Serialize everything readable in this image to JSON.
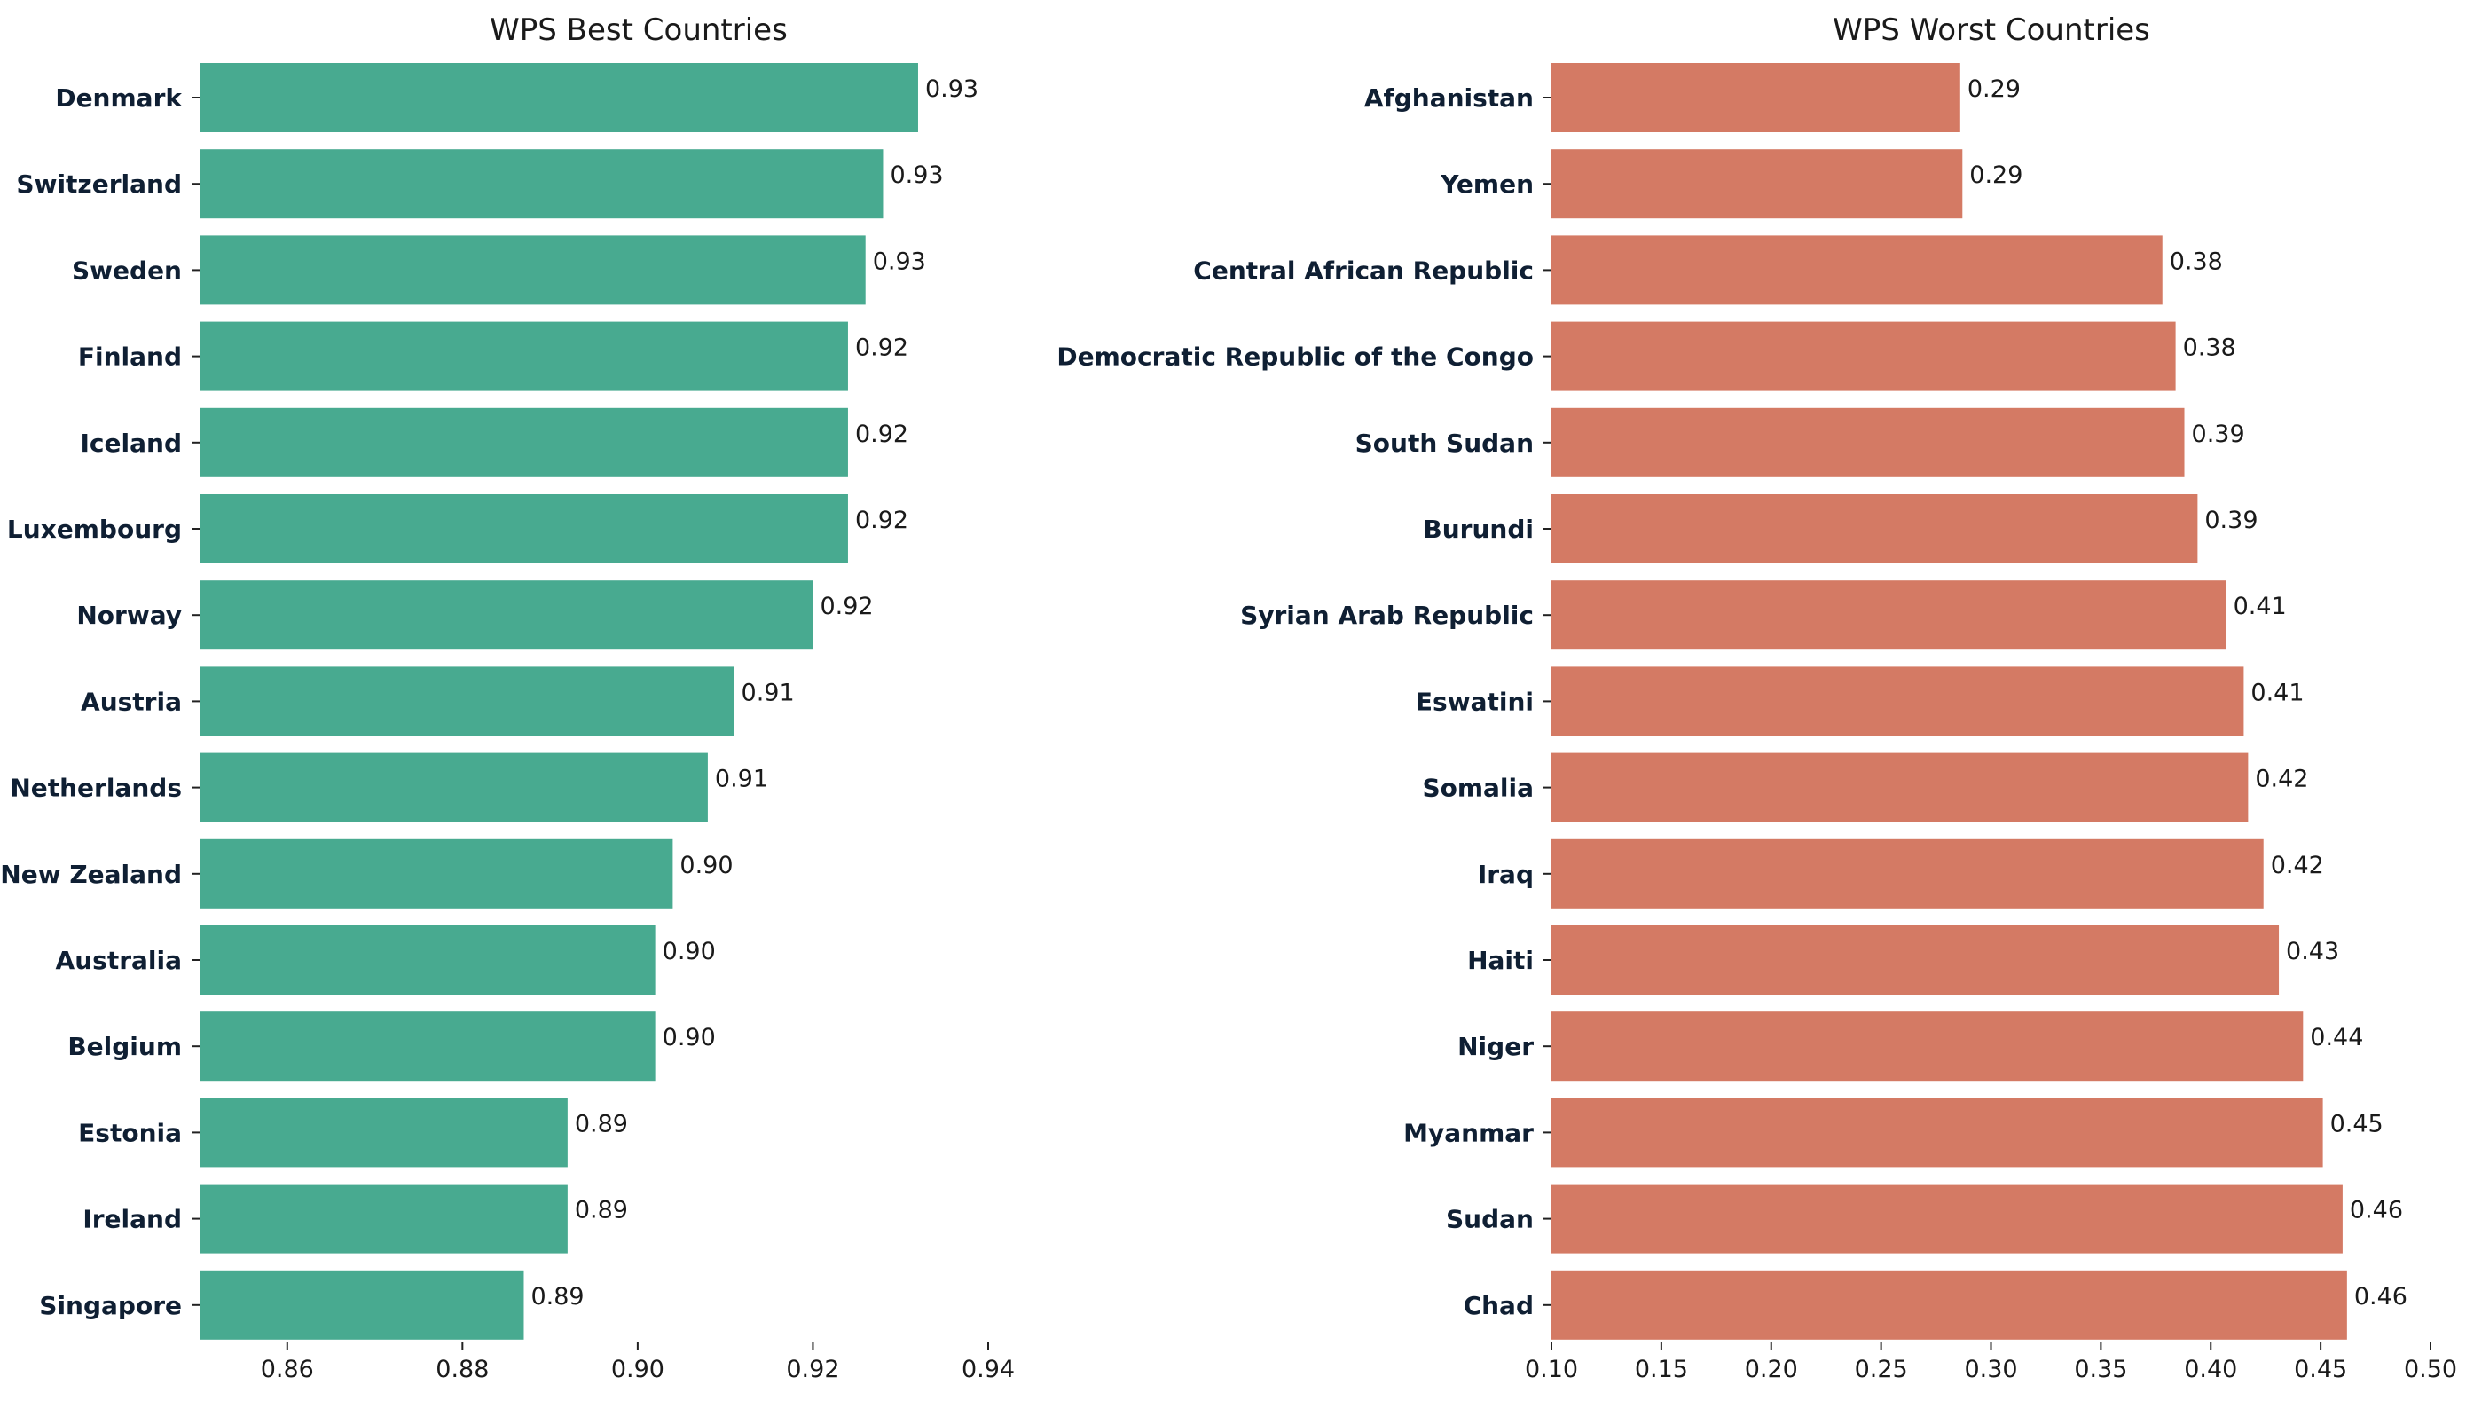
{
  "chart_data": [
    {
      "type": "bar",
      "orientation": "horizontal",
      "title": "WPS Best Countries",
      "categories": [
        "Denmark",
        "Switzerland",
        "Sweden",
        "Finland",
        "Iceland",
        "Luxembourg",
        "Norway",
        "Austria",
        "Netherlands",
        "New Zealand",
        "Australia",
        "Belgium",
        "Estonia",
        "Ireland",
        "Singapore"
      ],
      "values": [
        0.932,
        0.928,
        0.926,
        0.924,
        0.924,
        0.924,
        0.92,
        0.911,
        0.908,
        0.904,
        0.902,
        0.902,
        0.892,
        0.892,
        0.887
      ],
      "value_labels": [
        "0.93",
        "0.93",
        "0.93",
        "0.92",
        "0.92",
        "0.92",
        "0.92",
        "0.91",
        "0.91",
        "0.90",
        "0.90",
        "0.90",
        "0.89",
        "0.89",
        "0.89"
      ],
      "xlim": [
        0.85,
        0.94
      ],
      "xticks": [
        0.86,
        0.88,
        0.9,
        0.92,
        0.94
      ],
      "xtick_labels": [
        "0.86",
        "0.88",
        "0.90",
        "0.92",
        "0.94"
      ],
      "color": "#48aa90",
      "grid": false,
      "xlabel": "",
      "ylabel": ""
    },
    {
      "type": "bar",
      "orientation": "horizontal",
      "title": "WPS Worst Countries",
      "categories": [
        "Afghanistan",
        "Yemen",
        "Central African Republic",
        "Democratic Republic of the Congo",
        "South Sudan",
        "Burundi",
        "Syrian Arab Republic",
        "Eswatini",
        "Somalia",
        "Iraq",
        "Haiti",
        "Niger",
        "Myanmar",
        "Sudan",
        "Chad"
      ],
      "values": [
        0.286,
        0.287,
        0.378,
        0.384,
        0.388,
        0.394,
        0.407,
        0.415,
        0.417,
        0.424,
        0.431,
        0.442,
        0.451,
        0.46,
        0.462
      ],
      "value_labels": [
        "0.29",
        "0.29",
        "0.38",
        "0.38",
        "0.39",
        "0.39",
        "0.41",
        "0.41",
        "0.42",
        "0.42",
        "0.43",
        "0.44",
        "0.45",
        "0.46",
        "0.46"
      ],
      "xlim": [
        0.1,
        0.5
      ],
      "xticks": [
        0.1,
        0.15,
        0.2,
        0.25,
        0.3,
        0.35,
        0.4,
        0.45,
        0.5
      ],
      "xtick_labels": [
        "0.10",
        "0.15",
        "0.20",
        "0.25",
        "0.30",
        "0.35",
        "0.40",
        "0.45",
        "0.50"
      ],
      "color": "#d47a64",
      "grid": false,
      "xlabel": "",
      "ylabel": ""
    }
  ]
}
